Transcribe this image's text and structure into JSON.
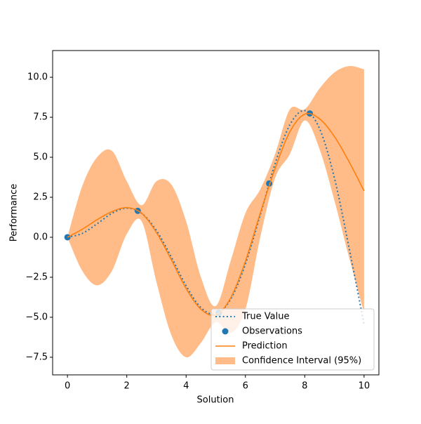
{
  "chart_data": {
    "type": "line",
    "xlabel": "Solution",
    "ylabel": "Performance",
    "xlim": [
      -0.5,
      10.5
    ],
    "ylim": [
      -8.6,
      11.67
    ],
    "xticks": [
      0,
      2,
      4,
      6,
      8,
      10
    ],
    "yticks": [
      {
        "value": -7.5,
        "label": "−7.5"
      },
      {
        "value": -5,
        "label": "−5.0"
      },
      {
        "value": -2.5,
        "label": "−2.5"
      },
      {
        "value": 0,
        "label": "0.0"
      },
      2.5,
      {
        "value": 5,
        "label": "5.0"
      },
      7.5,
      {
        "value": 10,
        "label": "10.0"
      }
    ],
    "legend": "lower right",
    "x": [
      0,
      0.5,
      1,
      1.5,
      2,
      2.5,
      3,
      3.5,
      4,
      4.5,
      5,
      5.5,
      6,
      6.5,
      7,
      7.5,
      8,
      8.5,
      9,
      9.5,
      10
    ],
    "series": [
      {
        "name": "Confidence Interval (95%)",
        "kind": "band",
        "color": "#ffbb88",
        "lower": [
          0,
          -2.1,
          -3.0,
          -2.1,
          0.2,
          1.0,
          -2.8,
          -6.1,
          -7.5,
          -6.6,
          -5.3,
          -6.0,
          -4.5,
          0,
          3.7,
          5.2,
          7.3,
          5.5,
          2.3,
          -1.3,
          -4.7
        ],
        "upper": [
          0,
          3.2,
          5.0,
          5.4,
          3.5,
          2.0,
          3.5,
          3.3,
          1.0,
          -2.5,
          -4.3,
          -1.5,
          1.5,
          3.0,
          5.2,
          8.0,
          8.0,
          9.3,
          10.3,
          10.7,
          10.5
        ]
      },
      {
        "name": "True Value",
        "kind": "dotted",
        "color": "#1f77b4",
        "values": [
          0,
          0.24,
          0.841,
          1.496,
          1.819,
          1.496,
          0.423,
          -1.228,
          -3.027,
          -4.399,
          -4.795,
          -3.88,
          -1.676,
          1.398,
          4.599,
          7.035,
          7.915,
          6.787,
          3.709,
          -0.715,
          -5.44
        ]
      },
      {
        "name": "Observations",
        "kind": "scatter",
        "color": "#1f77b4",
        "x": [
          0,
          2.37,
          5.1,
          6.8,
          8.17
        ],
        "values": [
          0,
          1.65,
          -4.72,
          3.36,
          7.74
        ]
      },
      {
        "name": "Prediction",
        "kind": "line",
        "color": "#ff7f0e",
        "values": [
          0,
          0.5,
          1.1,
          1.6,
          1.85,
          1.5,
          0.3,
          -1.4,
          -3.2,
          -4.5,
          -4.85,
          -3.8,
          -1.5,
          1.5,
          4.3,
          6.6,
          7.7,
          7.4,
          6.3,
          4.7,
          2.9
        ]
      }
    ],
    "legend_order": [
      1,
      2,
      3,
      0
    ]
  }
}
